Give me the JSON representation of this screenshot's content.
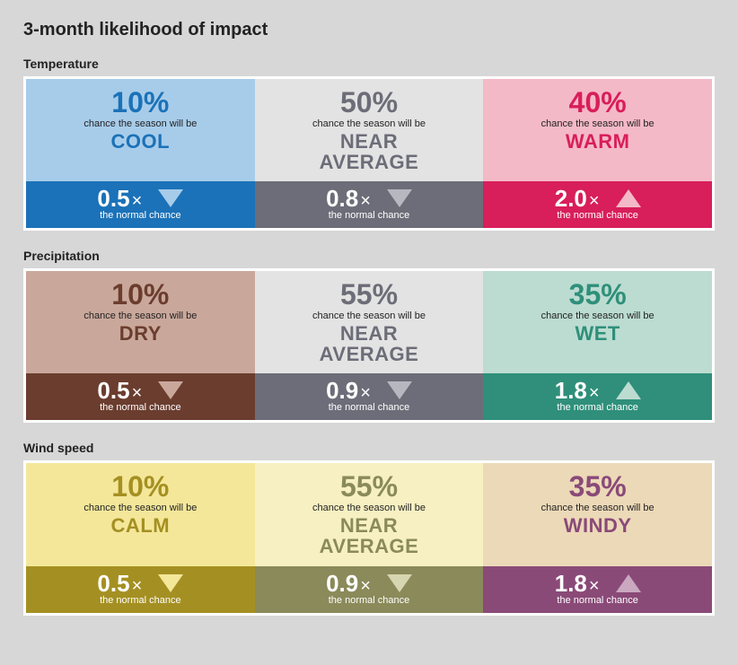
{
  "title": "3-month likelihood of impact",
  "chance_label": "chance the season will be",
  "normal_label": "the normal chance",
  "sections": [
    {
      "label": "Temperature",
      "cols": [
        {
          "pct": "10%",
          "cat": "COOL",
          "mult": "0.5",
          "arrow": "down",
          "top_bg": "#a7ccea",
          "accent": "#1b72b8",
          "bot_bg": "#1b72b8",
          "tri_color": "#a7ccea"
        },
        {
          "pct": "50%",
          "cat": "NEAR\nAVERAGE",
          "mult": "0.8",
          "arrow": "down",
          "top_bg": "#e3e3e3",
          "accent": "#6d6d79",
          "bot_bg": "#6d6d79",
          "tri_color": "#b7b7bf"
        },
        {
          "pct": "40%",
          "cat": "WARM",
          "mult": "2.0",
          "arrow": "up",
          "top_bg": "#f4b9c7",
          "accent": "#d81e5b",
          "bot_bg": "#d81e5b",
          "tri_color": "#f4b9c7"
        }
      ]
    },
    {
      "label": "Precipitation",
      "cols": [
        {
          "pct": "10%",
          "cat": "DRY",
          "mult": "0.5",
          "arrow": "down",
          "top_bg": "#c9a89b",
          "accent": "#6b3d2e",
          "bot_bg": "#6b3d2e",
          "tri_color": "#c9a89b"
        },
        {
          "pct": "55%",
          "cat": "NEAR\nAVERAGE",
          "mult": "0.9",
          "arrow": "down",
          "top_bg": "#e3e3e3",
          "accent": "#6d6d79",
          "bot_bg": "#6d6d79",
          "tri_color": "#b7b7bf"
        },
        {
          "pct": "35%",
          "cat": "WET",
          "mult": "1.8",
          "arrow": "up",
          "top_bg": "#bcdcd1",
          "accent": "#2f8f7a",
          "bot_bg": "#2f8f7a",
          "tri_color": "#bcdcd1"
        }
      ]
    },
    {
      "label": "Wind speed",
      "cols": [
        {
          "pct": "10%",
          "cat": "CALM",
          "mult": "0.5",
          "arrow": "down",
          "top_bg": "#f4e79a",
          "accent": "#a49022",
          "bot_bg": "#a49022",
          "tri_color": "#f4e79a"
        },
        {
          "pct": "55%",
          "cat": "NEAR\nAVERAGE",
          "mult": "0.9",
          "arrow": "down",
          "top_bg": "#f7f0c2",
          "accent": "#8a8a5a",
          "bot_bg": "#8a8a5a",
          "tri_color": "#d6d6b0"
        },
        {
          "pct": "35%",
          "cat": "WINDY",
          "mult": "1.8",
          "arrow": "up",
          "top_bg": "#ecd9b8",
          "accent": "#8a4a78",
          "bot_bg": "#8a4a78",
          "tri_color": "#caa8c0"
        }
      ]
    }
  ]
}
